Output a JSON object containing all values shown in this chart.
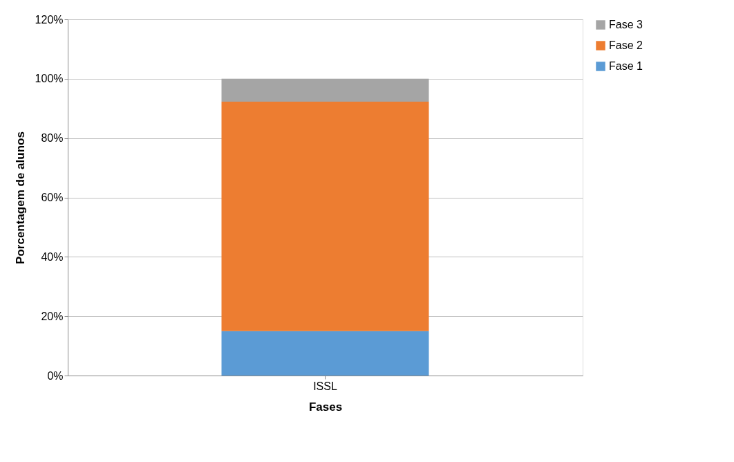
{
  "chart_data": {
    "type": "bar",
    "stacked": true,
    "xlabel": "Fases",
    "ylabel": "Porcentagem de alunos",
    "categories": [
      "ISSL"
    ],
    "series": [
      {
        "name": "Fase 1",
        "color": "#5b9bd5",
        "values": [
          15
        ]
      },
      {
        "name": "Fase 2",
        "color": "#ed7d31",
        "values": [
          77.3
        ]
      },
      {
        "name": "Fase 3",
        "color": "#a5a5a5",
        "values": [
          7.7
        ]
      }
    ],
    "ylim": [
      0,
      120
    ],
    "yticks": [
      {
        "value": 0,
        "label": "0%"
      },
      {
        "value": 20,
        "label": "20%"
      },
      {
        "value": 40,
        "label": "40%"
      },
      {
        "value": 60,
        "label": "60%"
      },
      {
        "value": 80,
        "label": "80%"
      },
      {
        "value": 100,
        "label": "100%"
      },
      {
        "value": 120,
        "label": "120%"
      }
    ],
    "grid": "y",
    "legend": "right"
  }
}
